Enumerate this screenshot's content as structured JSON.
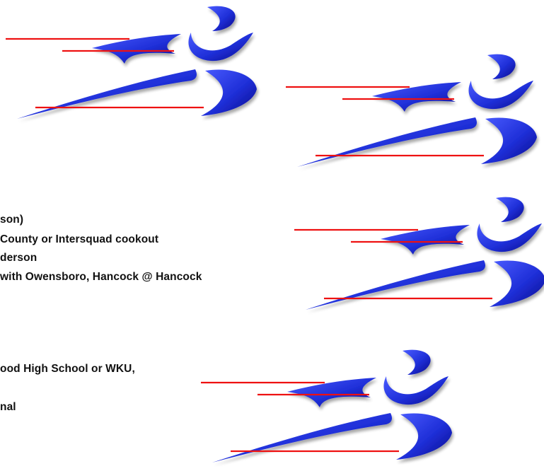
{
  "schedule_lines": [
    "son)",
    "County or Intersquad cookout",
    "derson",
    "with Owensboro, Hancock @ Hancock",
    "ood High School or WKU,",
    "nal"
  ],
  "logo": {
    "icon": "runner-logo-icon",
    "colors": {
      "swoosh": "#2233dd",
      "swoosh_dark": "#0a0a90",
      "stripe": "#ee1111"
    }
  }
}
